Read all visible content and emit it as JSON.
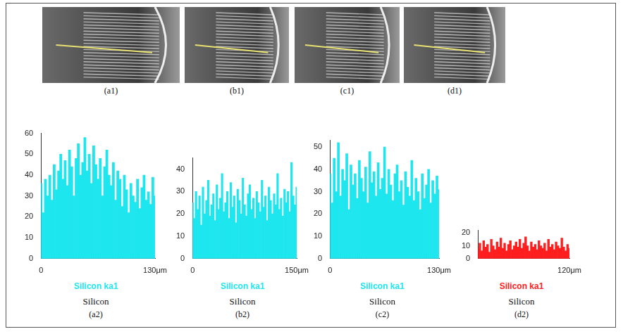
{
  "images": [
    {
      "caption": "(a1)"
    },
    {
      "caption": "(b1)"
    },
    {
      "caption": "(c1)"
    },
    {
      "caption": "(d1)"
    }
  ],
  "chart_data": [
    {
      "type": "bar",
      "caption": "(a2)",
      "x_label": "Silicon",
      "legend": "bottom",
      "grid": false,
      "xlim": [
        0,
        130
      ],
      "xticks": [
        0,
        {
          "value": 130,
          "label": "130μm"
        }
      ],
      "ylim": [
        0,
        60
      ],
      "yticks": [
        0,
        10,
        20,
        30,
        40,
        50,
        60
      ],
      "x": [
        0,
        2.5,
        5,
        7.5,
        10,
        12.5,
        15,
        17.5,
        20,
        22.5,
        25,
        27.5,
        30,
        32.5,
        35,
        37.5,
        40,
        42.5,
        45,
        47.5,
        50,
        52.5,
        55,
        57.5,
        60,
        62.5,
        65,
        67.5,
        70,
        72.5,
        75,
        77.5,
        80,
        82.5,
        85,
        87.5,
        90,
        92.5,
        95,
        97.5,
        100,
        102.5,
        105,
        107.5,
        110,
        112.5,
        115,
        117.5,
        120,
        122.5,
        125,
        127.5,
        130
      ],
      "series": [
        {
          "name": "Silicon ka1",
          "color": "#1ee6ee",
          "values": [
            36,
            22,
            38,
            30,
            40,
            28,
            45,
            33,
            42,
            50,
            38,
            47,
            35,
            52,
            44,
            30,
            48,
            55,
            40,
            46,
            58,
            42,
            50,
            36,
            54,
            45,
            38,
            48,
            30,
            44,
            52,
            40,
            35,
            46,
            28,
            42,
            38,
            25,
            40,
            33,
            22,
            36,
            30,
            27,
            38,
            24,
            34,
            40,
            28,
            32,
            26,
            39,
            30
          ]
        }
      ]
    },
    {
      "type": "bar",
      "caption": "(b2)",
      "x_label": "Silicon",
      "legend": "bottom",
      "grid": false,
      "xlim": [
        0,
        150
      ],
      "xticks": [
        0,
        {
          "value": 150,
          "label": "150μm"
        }
      ],
      "ylim": [
        0,
        45
      ],
      "yticks": [
        0,
        10,
        20,
        30,
        40
      ],
      "x": [
        0,
        2.5,
        5,
        7.5,
        10,
        12.5,
        15,
        17.5,
        20,
        22.5,
        25,
        27.5,
        30,
        32.5,
        35,
        37.5,
        40,
        42.5,
        45,
        47.5,
        50,
        52.5,
        55,
        57.5,
        60,
        62.5,
        65,
        67.5,
        70,
        72.5,
        75,
        77.5,
        80,
        82.5,
        85,
        87.5,
        90,
        92.5,
        95,
        97.5,
        100,
        102.5,
        105,
        107.5,
        110,
        112.5,
        115,
        117.5,
        120,
        122.5,
        125,
        127.5,
        130,
        132.5,
        135,
        137.5,
        140,
        142.5,
        145,
        147.5,
        150
      ],
      "series": [
        {
          "name": "Silicon ka1",
          "color": "#1ee6ee",
          "values": [
            25,
            18,
            30,
            22,
            28,
            15,
            32,
            20,
            26,
            35,
            19,
            24,
            29,
            17,
            33,
            22,
            27,
            38,
            21,
            25,
            30,
            18,
            34,
            23,
            28,
            16,
            31,
            26,
            20,
            36,
            24,
            19,
            29,
            33,
            22,
            27,
            18,
            30,
            25,
            21,
            35,
            23,
            28,
            17,
            32,
            26,
            20,
            29,
            24,
            38,
            22,
            27,
            19,
            31,
            25,
            30,
            21,
            43,
            28,
            24,
            32
          ]
        }
      ]
    },
    {
      "type": "bar",
      "caption": "(c2)",
      "x_label": "Silicon",
      "legend": "bottom",
      "grid": false,
      "xlim": [
        0,
        130
      ],
      "xticks": [
        0,
        {
          "value": 130,
          "label": "130μm"
        }
      ],
      "ylim": [
        0,
        53
      ],
      "yticks": [
        0,
        10,
        20,
        30,
        40,
        50
      ],
      "x": [
        0,
        2.5,
        5,
        7.5,
        10,
        12.5,
        15,
        17.5,
        20,
        22.5,
        25,
        27.5,
        30,
        32.5,
        35,
        37.5,
        40,
        42.5,
        45,
        47.5,
        50,
        52.5,
        55,
        57.5,
        60,
        62.5,
        65,
        67.5,
        70,
        72.5,
        75,
        77.5,
        80,
        82.5,
        85,
        87.5,
        90,
        92.5,
        95,
        97.5,
        100,
        102.5,
        105,
        107.5,
        110,
        112.5,
        115,
        117.5,
        120,
        122.5,
        125,
        127.5,
        130
      ],
      "series": [
        {
          "name": "Silicon ka1",
          "color": "#1ee6ee",
          "values": [
            38,
            25,
            45,
            30,
            52,
            28,
            40,
            35,
            47,
            22,
            42,
            33,
            38,
            27,
            44,
            36,
            30,
            41,
            25,
            48,
            34,
            39,
            28,
            43,
            31,
            36,
            50,
            29,
            40,
            33,
            26,
            38,
            42,
            30,
            35,
            24,
            39,
            32,
            28,
            44,
            26,
            36,
            30,
            22,
            38,
            27,
            33,
            40,
            25,
            35,
            29,
            37,
            31
          ]
        }
      ]
    },
    {
      "type": "bar",
      "caption": "(d2)",
      "x_label": "Silicon",
      "legend": "bottom",
      "grid": false,
      "xlim": [
        0,
        120
      ],
      "xticks": [
        {
          "value": 120,
          "label": "120μm"
        }
      ],
      "ylim": [
        0,
        22
      ],
      "yticks": [
        0,
        10,
        20
      ],
      "x": [
        0,
        2.5,
        5,
        7.5,
        10,
        12.5,
        15,
        17.5,
        20,
        22.5,
        25,
        27.5,
        30,
        32.5,
        35,
        37.5,
        40,
        42.5,
        45,
        47.5,
        50,
        52.5,
        55,
        57.5,
        60,
        62.5,
        65,
        67.5,
        70,
        72.5,
        75,
        77.5,
        80,
        82.5,
        85,
        87.5,
        90,
        92.5,
        95,
        97.5,
        100,
        102.5,
        105,
        107.5,
        110,
        112.5,
        115,
        117.5,
        120
      ],
      "series": [
        {
          "name": "Silicon ka1",
          "color": "#ff1e1e",
          "values": [
            8,
            12,
            6,
            14,
            9,
            11,
            5,
            15,
            10,
            7,
            13,
            9,
            16,
            8,
            12,
            6,
            11,
            14,
            7,
            10,
            13,
            9,
            15,
            8,
            12,
            17,
            10,
            6,
            13,
            9,
            11,
            7,
            14,
            10,
            8,
            12,
            6,
            15,
            9,
            11,
            7,
            13,
            10,
            8,
            16,
            9,
            6,
            11,
            8
          ]
        }
      ]
    }
  ]
}
